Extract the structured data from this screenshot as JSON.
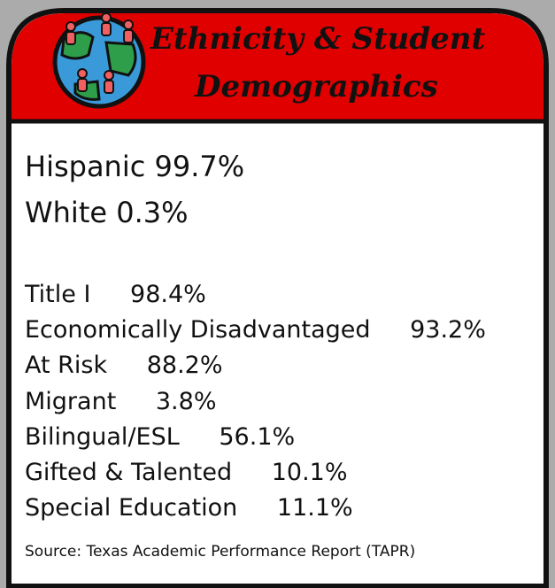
{
  "header": {
    "title_lines": [
      "Ethnicity & Student",
      "Demographics"
    ]
  },
  "ethnicity": [
    {
      "label": "Hispanic",
      "value": "99.7%"
    },
    {
      "label": "White",
      "value": "0.3%"
    }
  ],
  "demographics": [
    {
      "label": "Title I",
      "value": "98.4%"
    },
    {
      "label": "Economically Disadvantaged",
      "value": "93.2%"
    },
    {
      "label": "At Risk",
      "value": "88.2%"
    },
    {
      "label": "Migrant",
      "value": "3.8%"
    },
    {
      "label": "Bilingual/ESL",
      "value": "56.1%"
    },
    {
      "label": "Gifted & Talented",
      "value": "10.1%"
    },
    {
      "label": "Special Education",
      "value": "11.1%"
    }
  ],
  "source": "Source: Texas Academic Performance Report (TAPR)"
}
